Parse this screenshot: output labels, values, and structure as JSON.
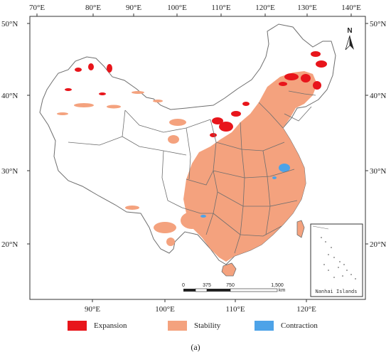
{
  "colors": {
    "expansion": "#e8151b",
    "stability": "#f4a27e",
    "contraction": "#4da3e8",
    "boundary": "#6e6e6e"
  },
  "axes": {
    "top_lon": [
      "70°E",
      "80°E",
      "90°E",
      "100°E",
      "110°E",
      "120°E",
      "130°E",
      "140°E"
    ],
    "bottom_lon": [
      "90°E",
      "100°E",
      "110°E",
      "120°E"
    ],
    "left_lat": [
      "50°N",
      "40°N",
      "30°N",
      "20°N"
    ],
    "right_lat": [
      "50°N",
      "40°N",
      "30°N",
      "20°N"
    ]
  },
  "north_arrow": {
    "label": "N",
    "icon": "north-arrow-icon"
  },
  "scale_bar": {
    "ticks": [
      "0",
      "375",
      "750",
      "1,500"
    ],
    "unit": "km"
  },
  "inset": {
    "label": "Nanhai Islands"
  },
  "legend": {
    "items": [
      {
        "key": "expansion",
        "label": "Expansion"
      },
      {
        "key": "stability",
        "label": "Stability"
      },
      {
        "key": "contraction",
        "label": "Contraction"
      }
    ]
  },
  "caption": "(a)"
}
